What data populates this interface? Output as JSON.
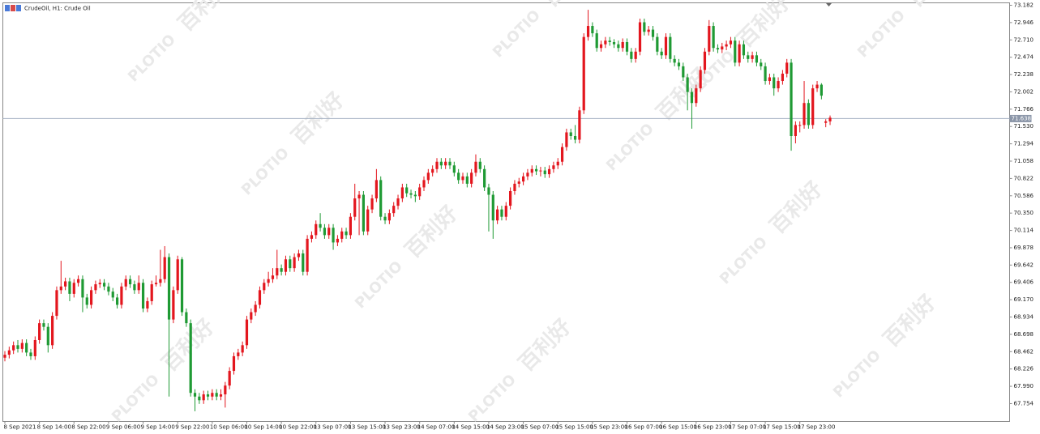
{
  "chart_data": {
    "type": "candlestick",
    "title": "CrudeOil, H1:  Crude Oil",
    "watermark": [
      "PLOTIO",
      "百利好"
    ],
    "up_color": "#e3161e",
    "down_color": "#1f9a34",
    "ylim": [
      67.511,
      73.215
    ],
    "yticks": [
      73.182,
      72.946,
      {
        "value": 72.71,
        "label": "72.710"
      },
      72.474,
      72.238,
      72.002,
      71.766,
      {
        "value": 71.53,
        "label": "71.530"
      },
      71.294,
      71.058,
      70.822,
      70.586,
      {
        "value": 70.35,
        "label": "70.350"
      },
      70.114,
      69.878,
      69.642,
      69.406,
      {
        "value": 69.17,
        "label": "69.170"
      },
      68.934,
      68.698,
      68.462,
      68.226,
      {
        "value": 67.99,
        "label": "67.990"
      },
      67.754
    ],
    "current_price": 71.638,
    "xticks": [
      {
        "value": 0,
        "label": "8 Sep 2021"
      },
      {
        "value": 8,
        "label": "8 Sep 14:00"
      },
      {
        "value": 16,
        "label": "8 Sep 22:00"
      },
      {
        "value": 24,
        "label": "9 Sep 06:00"
      },
      {
        "value": 32,
        "label": "9 Sep 14:00"
      },
      {
        "value": 40,
        "label": "9 Sep 22:00"
      },
      {
        "value": 48,
        "label": "10 Sep 06:00"
      },
      {
        "value": 56,
        "label": "10 Sep 14:00"
      },
      {
        "value": 64,
        "label": "10 Sep 22:00"
      },
      {
        "value": 72,
        "label": "13 Sep 07:00"
      },
      {
        "value": 80,
        "label": "13 Sep 15:00"
      },
      {
        "value": 88,
        "label": "13 Sep 23:00"
      },
      {
        "value": 96,
        "label": "14 Sep 07:00"
      },
      {
        "value": 104,
        "label": "14 Sep 15:00"
      },
      {
        "value": 112,
        "label": "14 Sep 23:00"
      },
      {
        "value": 120,
        "label": "15 Sep 07:00"
      },
      {
        "value": 128,
        "label": "15 Sep 15:00"
      },
      {
        "value": 136,
        "label": "15 Sep 23:00"
      },
      {
        "value": 144,
        "label": "16 Sep 07:00"
      },
      {
        "value": 152,
        "label": "16 Sep 15:00"
      },
      {
        "value": 160,
        "label": "16 Sep 23:00"
      },
      {
        "value": 168,
        "label": "17 Sep 07:00"
      },
      {
        "value": 176,
        "label": "17 Sep 15:00"
      },
      {
        "value": 184,
        "label": "17 Sep 23:00"
      }
    ],
    "ohlc": [
      [
        68.38,
        68.47,
        68.33,
        68.42
      ],
      [
        68.42,
        68.53,
        68.37,
        68.48
      ],
      [
        68.48,
        68.6,
        68.43,
        68.55
      ],
      [
        68.55,
        68.62,
        68.45,
        68.5
      ],
      [
        68.5,
        68.63,
        68.45,
        68.58
      ],
      [
        68.58,
        68.63,
        68.4,
        68.45
      ],
      [
        68.45,
        68.5,
        68.35,
        68.4
      ],
      [
        68.4,
        68.67,
        68.35,
        68.62
      ],
      [
        68.62,
        68.9,
        68.57,
        68.85
      ],
      [
        68.85,
        68.9,
        68.75,
        68.8
      ],
      [
        68.8,
        68.85,
        68.45,
        68.55
      ],
      [
        68.55,
        69.0,
        68.5,
        68.95
      ],
      [
        68.95,
        69.35,
        68.9,
        69.3
      ],
      [
        69.3,
        69.7,
        69.25,
        69.35
      ],
      [
        69.35,
        69.47,
        69.3,
        69.42
      ],
      [
        69.42,
        69.47,
        69.15,
        69.25
      ],
      [
        69.25,
        69.45,
        69.2,
        69.4
      ],
      [
        69.4,
        69.5,
        69.35,
        69.45
      ],
      [
        69.45,
        69.5,
        69.0,
        69.2
      ],
      [
        69.2,
        69.25,
        69.05,
        69.1
      ],
      [
        69.1,
        69.35,
        69.05,
        69.3
      ],
      [
        69.3,
        69.43,
        69.25,
        69.38
      ],
      [
        69.38,
        69.45,
        69.33,
        69.4
      ],
      [
        69.4,
        69.45,
        69.3,
        69.35
      ],
      [
        69.35,
        69.4,
        69.23,
        69.28
      ],
      [
        69.28,
        69.33,
        69.15,
        69.2
      ],
      [
        69.2,
        69.25,
        69.05,
        69.1
      ],
      [
        69.1,
        69.4,
        69.05,
        69.35
      ],
      [
        69.35,
        69.5,
        69.3,
        69.45
      ],
      [
        69.45,
        69.5,
        69.33,
        69.38
      ],
      [
        69.38,
        69.43,
        69.25,
        69.3
      ],
      [
        69.3,
        69.5,
        69.25,
        69.4
      ],
      [
        69.4,
        69.45,
        69.0,
        69.05
      ],
      [
        69.05,
        69.2,
        69.0,
        69.15
      ],
      [
        69.15,
        69.43,
        69.1,
        69.38
      ],
      [
        69.38,
        69.5,
        69.35,
        69.4
      ],
      [
        69.4,
        69.85,
        69.35,
        69.45
      ],
      [
        69.45,
        69.9,
        69.4,
        69.75
      ],
      [
        69.75,
        69.8,
        67.85,
        68.9
      ],
      [
        68.9,
        69.35,
        68.85,
        69.3
      ],
      [
        69.3,
        69.77,
        69.25,
        69.72
      ],
      [
        69.72,
        69.75,
        68.95,
        69.0
      ],
      [
        69.0,
        69.05,
        68.8,
        68.85
      ],
      [
        68.85,
        68.9,
        67.85,
        67.9
      ],
      [
        67.9,
        67.95,
        67.65,
        67.85
      ],
      [
        67.85,
        67.9,
        67.75,
        67.8
      ],
      [
        67.8,
        67.93,
        67.75,
        67.88
      ],
      [
        67.88,
        67.93,
        67.8,
        67.85
      ],
      [
        67.85,
        67.95,
        67.8,
        67.9
      ],
      [
        67.9,
        67.95,
        67.8,
        67.85
      ],
      [
        67.85,
        67.95,
        67.8,
        67.88
      ],
      [
        67.88,
        68.05,
        67.7,
        68.0
      ],
      [
        68.0,
        68.25,
        67.95,
        68.2
      ],
      [
        68.2,
        68.45,
        68.15,
        68.4
      ],
      [
        68.4,
        68.5,
        68.35,
        68.45
      ],
      [
        68.45,
        68.6,
        68.4,
        68.55
      ],
      [
        68.55,
        68.95,
        68.5,
        68.9
      ],
      [
        68.9,
        69.05,
        68.85,
        69.0
      ],
      [
        69.0,
        69.15,
        68.95,
        69.1
      ],
      [
        69.1,
        69.35,
        69.05,
        69.3
      ],
      [
        69.3,
        69.45,
        69.25,
        69.4
      ],
      [
        69.4,
        69.55,
        69.35,
        69.45
      ],
      [
        69.45,
        69.6,
        69.4,
        69.5
      ],
      [
        69.5,
        69.85,
        69.45,
        69.6
      ],
      [
        69.6,
        69.65,
        69.5,
        69.55
      ],
      [
        69.55,
        69.77,
        69.5,
        69.72
      ],
      [
        69.72,
        69.77,
        69.55,
        69.6
      ],
      [
        69.6,
        69.8,
        69.55,
        69.75
      ],
      [
        69.75,
        69.85,
        69.7,
        69.8
      ],
      [
        69.8,
        69.85,
        69.5,
        69.55
      ],
      [
        69.55,
        70.05,
        69.5,
        70.0
      ],
      [
        70.0,
        70.1,
        69.95,
        70.05
      ],
      [
        70.05,
        70.25,
        70.0,
        70.2
      ],
      [
        70.2,
        70.35,
        70.1,
        70.15
      ],
      [
        70.15,
        70.2,
        70.0,
        70.05
      ],
      [
        70.05,
        70.2,
        70.0,
        70.15
      ],
      [
        70.15,
        70.2,
        69.85,
        69.95
      ],
      [
        69.95,
        70.05,
        69.9,
        70.0
      ],
      [
        70.0,
        70.15,
        69.95,
        70.1
      ],
      [
        70.1,
        70.15,
        70.0,
        70.05
      ],
      [
        70.05,
        70.35,
        70.0,
        70.3
      ],
      [
        70.3,
        70.75,
        70.25,
        70.55
      ],
      [
        70.55,
        70.65,
        70.05,
        70.6
      ],
      [
        70.6,
        70.65,
        70.05,
        70.1
      ],
      [
        70.1,
        70.45,
        70.05,
        70.4
      ],
      [
        70.4,
        70.6,
        70.35,
        70.55
      ],
      [
        70.55,
        70.95,
        70.5,
        70.8
      ],
      [
        70.8,
        70.85,
        70.25,
        70.3
      ],
      [
        70.3,
        70.35,
        70.2,
        70.25
      ],
      [
        70.25,
        70.4,
        70.2,
        70.35
      ],
      [
        70.35,
        70.5,
        70.3,
        70.45
      ],
      [
        70.45,
        70.6,
        70.4,
        70.55
      ],
      [
        70.55,
        70.75,
        70.5,
        70.7
      ],
      [
        70.7,
        70.75,
        70.57,
        70.62
      ],
      [
        70.62,
        70.67,
        70.55,
        70.6
      ],
      [
        70.6,
        70.65,
        70.5,
        70.58
      ],
      [
        70.58,
        70.75,
        70.53,
        70.7
      ],
      [
        70.7,
        70.85,
        70.65,
        70.8
      ],
      [
        70.8,
        70.95,
        70.75,
        70.9
      ],
      [
        70.9,
        71.0,
        70.85,
        70.95
      ],
      [
        70.95,
        71.1,
        70.9,
        71.05
      ],
      [
        71.05,
        71.1,
        70.95,
        71.0
      ],
      [
        71.0,
        71.1,
        70.95,
        71.05
      ],
      [
        71.05,
        71.1,
        70.95,
        71.0
      ],
      [
        71.0,
        71.05,
        70.85,
        70.9
      ],
      [
        70.9,
        70.95,
        70.75,
        70.8
      ],
      [
        70.8,
        70.9,
        70.75,
        70.85
      ],
      [
        70.85,
        70.9,
        70.7,
        70.75
      ],
      [
        70.75,
        70.95,
        70.7,
        70.9
      ],
      [
        70.9,
        71.15,
        70.85,
        71.05
      ],
      [
        71.05,
        71.1,
        70.9,
        70.95
      ],
      [
        70.95,
        71.0,
        70.65,
        70.7
      ],
      [
        70.7,
        70.75,
        70.1,
        70.6
      ],
      [
        70.6,
        70.65,
        70.0,
        70.25
      ],
      [
        70.25,
        70.45,
        70.2,
        70.4
      ],
      [
        70.4,
        70.45,
        70.25,
        70.3
      ],
      [
        70.3,
        70.5,
        70.25,
        70.45
      ],
      [
        70.45,
        70.7,
        70.4,
        70.65
      ],
      [
        70.65,
        70.8,
        70.6,
        70.75
      ],
      [
        70.75,
        70.83,
        70.7,
        70.78
      ],
      [
        70.78,
        70.9,
        70.73,
        70.85
      ],
      [
        70.85,
        70.95,
        70.8,
        70.9
      ],
      [
        70.9,
        71.0,
        70.85,
        70.95
      ],
      [
        70.95,
        71.0,
        70.87,
        70.92
      ],
      [
        70.92,
        70.98,
        70.85,
        70.93
      ],
      [
        70.93,
        70.98,
        70.83,
        70.88
      ],
      [
        70.88,
        71.0,
        70.83,
        70.95
      ],
      [
        70.95,
        71.05,
        70.9,
        71.0
      ],
      [
        71.0,
        71.1,
        70.95,
        71.05
      ],
      [
        71.05,
        71.3,
        71.0,
        71.25
      ],
      [
        71.25,
        71.5,
        71.2,
        71.45
      ],
      [
        71.45,
        71.5,
        71.35,
        71.4
      ],
      [
        71.4,
        71.55,
        71.3,
        71.35
      ],
      [
        71.35,
        71.8,
        71.3,
        71.75
      ],
      [
        71.75,
        72.8,
        71.7,
        72.75
      ],
      [
        72.75,
        73.12,
        72.7,
        72.9
      ],
      [
        72.9,
        72.95,
        72.75,
        72.8
      ],
      [
        72.8,
        72.85,
        72.55,
        72.6
      ],
      [
        72.6,
        72.7,
        72.55,
        72.65
      ],
      [
        72.65,
        72.75,
        72.6,
        72.7
      ],
      [
        72.7,
        72.75,
        72.63,
        72.68
      ],
      [
        72.68,
        72.72,
        72.6,
        72.65
      ],
      [
        72.65,
        72.7,
        72.55,
        72.6
      ],
      [
        72.6,
        72.73,
        72.55,
        72.68
      ],
      [
        72.68,
        72.73,
        72.5,
        72.55
      ],
      [
        72.55,
        72.6,
        72.4,
        72.45
      ],
      [
        72.45,
        72.6,
        72.4,
        72.55
      ],
      [
        72.55,
        73.0,
        72.5,
        72.95
      ],
      [
        72.95,
        73.0,
        72.77,
        72.82
      ],
      [
        72.82,
        72.9,
        72.77,
        72.85
      ],
      [
        72.85,
        72.9,
        72.7,
        72.75
      ],
      [
        72.75,
        72.8,
        72.5,
        72.55
      ],
      [
        72.55,
        72.6,
        72.45,
        72.5
      ],
      [
        72.5,
        72.8,
        72.45,
        72.75
      ],
      [
        72.75,
        72.8,
        72.4,
        72.45
      ],
      [
        72.45,
        72.5,
        72.35,
        72.4
      ],
      [
        72.4,
        72.45,
        72.3,
        72.35
      ],
      [
        72.35,
        72.4,
        72.15,
        72.2
      ],
      [
        72.2,
        72.25,
        71.75,
        72.0
      ],
      [
        72.0,
        72.05,
        71.5,
        71.85
      ],
      [
        71.85,
        72.1,
        71.8,
        72.05
      ],
      [
        72.05,
        72.35,
        72.0,
        72.3
      ],
      [
        72.3,
        72.6,
        72.25,
        72.55
      ],
      [
        72.55,
        72.98,
        72.5,
        72.9
      ],
      [
        72.9,
        72.95,
        72.55,
        72.6
      ],
      [
        72.6,
        72.65,
        72.53,
        72.58
      ],
      [
        72.58,
        72.67,
        72.53,
        72.62
      ],
      [
        72.62,
        72.7,
        72.57,
        72.65
      ],
      [
        72.65,
        72.75,
        72.6,
        72.7
      ],
      [
        72.7,
        72.75,
        72.35,
        72.4
      ],
      [
        72.4,
        72.7,
        72.35,
        72.65
      ],
      [
        72.65,
        72.7,
        72.45,
        72.5
      ],
      [
        72.5,
        72.55,
        72.4,
        72.45
      ],
      [
        72.45,
        72.55,
        72.4,
        72.5
      ],
      [
        72.5,
        72.55,
        72.35,
        72.4
      ],
      [
        72.4,
        72.45,
        72.3,
        72.35
      ],
      [
        72.35,
        72.4,
        72.1,
        72.15
      ],
      [
        72.15,
        72.25,
        72.1,
        72.2
      ],
      [
        72.2,
        72.25,
        71.95,
        72.05
      ],
      [
        72.05,
        72.2,
        72.0,
        72.15
      ],
      [
        72.15,
        72.3,
        72.1,
        72.25
      ],
      [
        72.25,
        72.45,
        72.2,
        72.4
      ],
      [
        72.4,
        72.45,
        71.2,
        71.4
      ],
      [
        71.4,
        71.6,
        71.3,
        71.55
      ],
      [
        71.55,
        71.6,
        71.45,
        71.55
      ],
      [
        71.55,
        72.15,
        71.5,
        71.85
      ],
      [
        71.85,
        71.9,
        71.5,
        71.55
      ],
      [
        71.55,
        72.1,
        71.5,
        72.05
      ],
      [
        72.05,
        72.15,
        72.0,
        72.1
      ],
      [
        72.1,
        72.12,
        71.9,
        71.95
      ],
      [
        71.58,
        71.63,
        71.52,
        71.6
      ],
      [
        71.6,
        71.68,
        71.55,
        71.65
      ]
    ]
  }
}
